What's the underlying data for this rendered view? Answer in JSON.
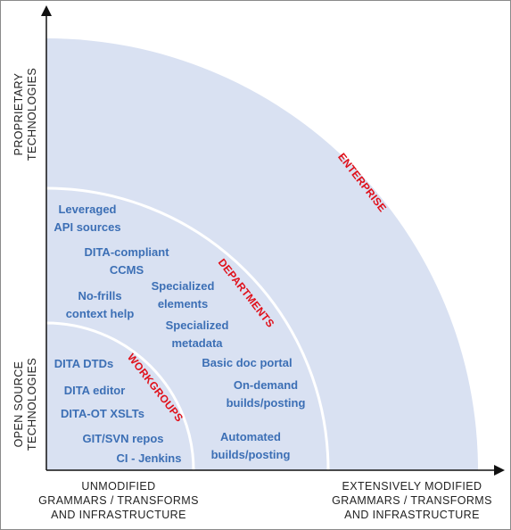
{
  "axes": {
    "y_top": [
      "PROPRIETARY",
      "TECHNOLOGIES"
    ],
    "y_bottom": [
      "OPEN SOURCE",
      "TECHNOLOGIES"
    ],
    "x_left": [
      "UNMODIFIED",
      "GRAMMARS / TRANSFORMS",
      "AND INFRASTRUCTURE"
    ],
    "x_right": [
      "EXTENSIVELY MODIFIED",
      "GRAMMARS / TRANSFORMS",
      "AND INFRASTRUCTURE"
    ]
  },
  "zones": {
    "enterprise": "ENTERPRISE",
    "departments": "DEPARTMENTS",
    "workgroups": "WORKGROUPS"
  },
  "items": {
    "leveraged_api": [
      "Leveraged",
      "API sources"
    ],
    "dita_ccms": [
      "DITA-compliant",
      "CCMS"
    ],
    "nofrills_help": [
      "No-frills",
      "context help"
    ],
    "spec_elements": [
      "Specialized",
      "elements"
    ],
    "spec_metadata": [
      "Specialized",
      "metadata"
    ],
    "basic_portal": [
      "Basic doc portal"
    ],
    "ondemand_builds": [
      "On-demand",
      "builds/posting"
    ],
    "automated_builds": [
      "Automated",
      "builds/posting"
    ],
    "dita_dtds": [
      "DITA DTDs"
    ],
    "dita_editor": [
      "DITA editor"
    ],
    "dita_ot": [
      "DITA-OT XSLTs"
    ],
    "git_svn": [
      "GIT/SVN repos"
    ],
    "ci_jenkins": [
      "CI - Jenkins"
    ]
  },
  "colors": {
    "zone_fill": "#d9e1f2",
    "ring_stroke": "#ffffff",
    "item_text": "#3c6fb5",
    "zone_label": "#e0101a",
    "axis_text": "#222222"
  }
}
